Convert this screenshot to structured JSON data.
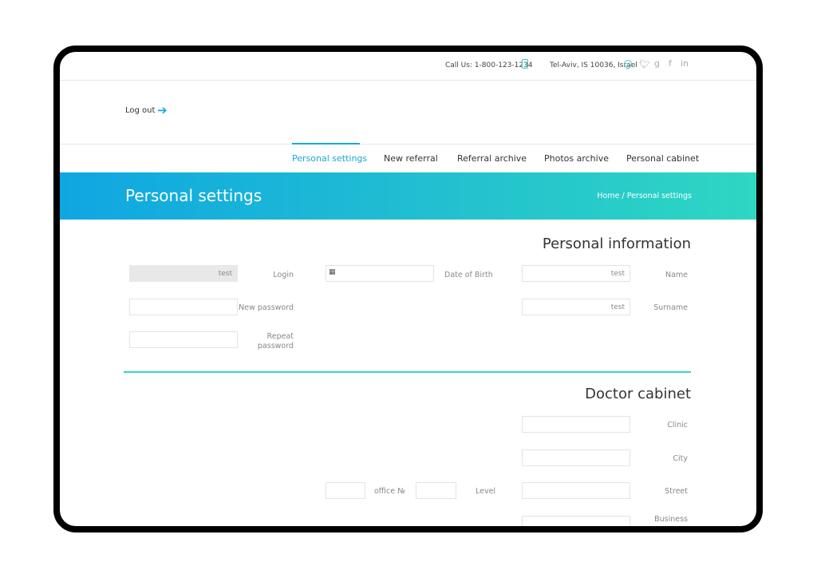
{
  "topbar": {
    "call": "Call Us: 1-800-123-1234",
    "address": "Tel-Aviv, IS 10036, Israel",
    "social": [
      "twitter-icon",
      "google-icon",
      "facebook-icon",
      "linkedin-icon"
    ]
  },
  "logout": "Log out",
  "nav": [
    {
      "label": "Personal settings",
      "active": true
    },
    {
      "label": "New referral"
    },
    {
      "label": "Referral archive"
    },
    {
      "label": "Photos archive"
    },
    {
      "label": "Personal cabinet"
    }
  ],
  "banner": {
    "title": "Personal settings",
    "breadcrumb": "Home / Personal settings"
  },
  "personal": {
    "heading": "Personal information",
    "login_label": "Login",
    "login_value": "test",
    "new_password": "New password",
    "repeat_password_1": "Repeat",
    "repeat_password_2": "password",
    "dob": "Date of Birth",
    "name_label": "Name",
    "name_value": "test",
    "surname_label": "Surname",
    "surname_value": "test"
  },
  "doctor": {
    "heading": "Doctor cabinet",
    "clinic": "Clinic",
    "city": "City",
    "street": "Street",
    "office": "office №",
    "level": "Level",
    "business": "Business"
  },
  "colors": {
    "accent": "#1aa7d9",
    "gradient_start": "#0fa6e2",
    "gradient_end": "#2fd6c2",
    "divider": "#2fd6c2"
  }
}
